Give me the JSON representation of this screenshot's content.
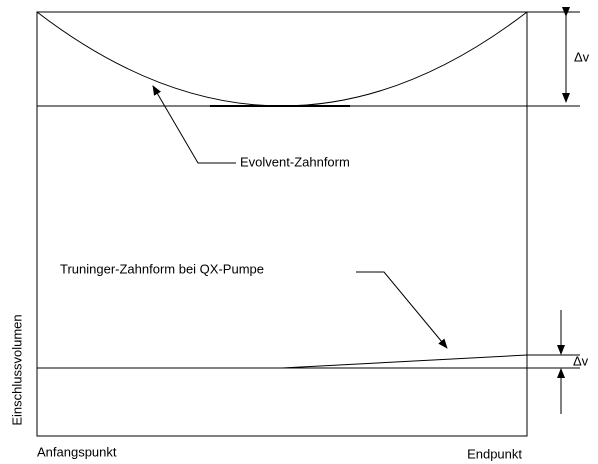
{
  "top_delta": "Δv",
  "evolvent_label": "Evolvent-Zahnform",
  "truninger_label": "Truninger-Zahnform bei QX-Pumpe",
  "bottom_delta": "Δv",
  "y_axis_label": "Einschlussvolumen",
  "x_start_label": "Anfangspunkt",
  "x_end_label": "Endpunkt"
}
